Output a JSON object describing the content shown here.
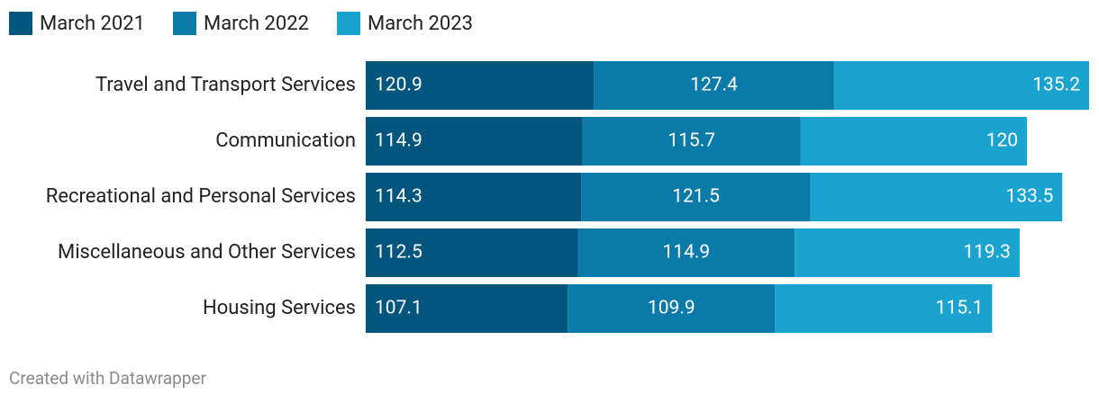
{
  "chart_data": {
    "type": "stacked-bar-horizontal",
    "categories": [
      "Travel and Transport Services",
      "Communication",
      "Recreational and Personal Services",
      "Miscellaneous and Other Services",
      "Housing Services"
    ],
    "series": [
      {
        "name": "March 2021",
        "color": "#02557d",
        "values": [
          120.9,
          114.9,
          114.3,
          112.5,
          107.1
        ]
      },
      {
        "name": "March 2022",
        "color": "#0a7aa8",
        "values": [
          127.4,
          115.7,
          121.5,
          114.9,
          109.9
        ]
      },
      {
        "name": "March 2023",
        "color": "#1ba3d0",
        "values": [
          135.2,
          120,
          133.5,
          119.3,
          115.1
        ]
      }
    ],
    "credit": "Created with Datawrapper"
  }
}
